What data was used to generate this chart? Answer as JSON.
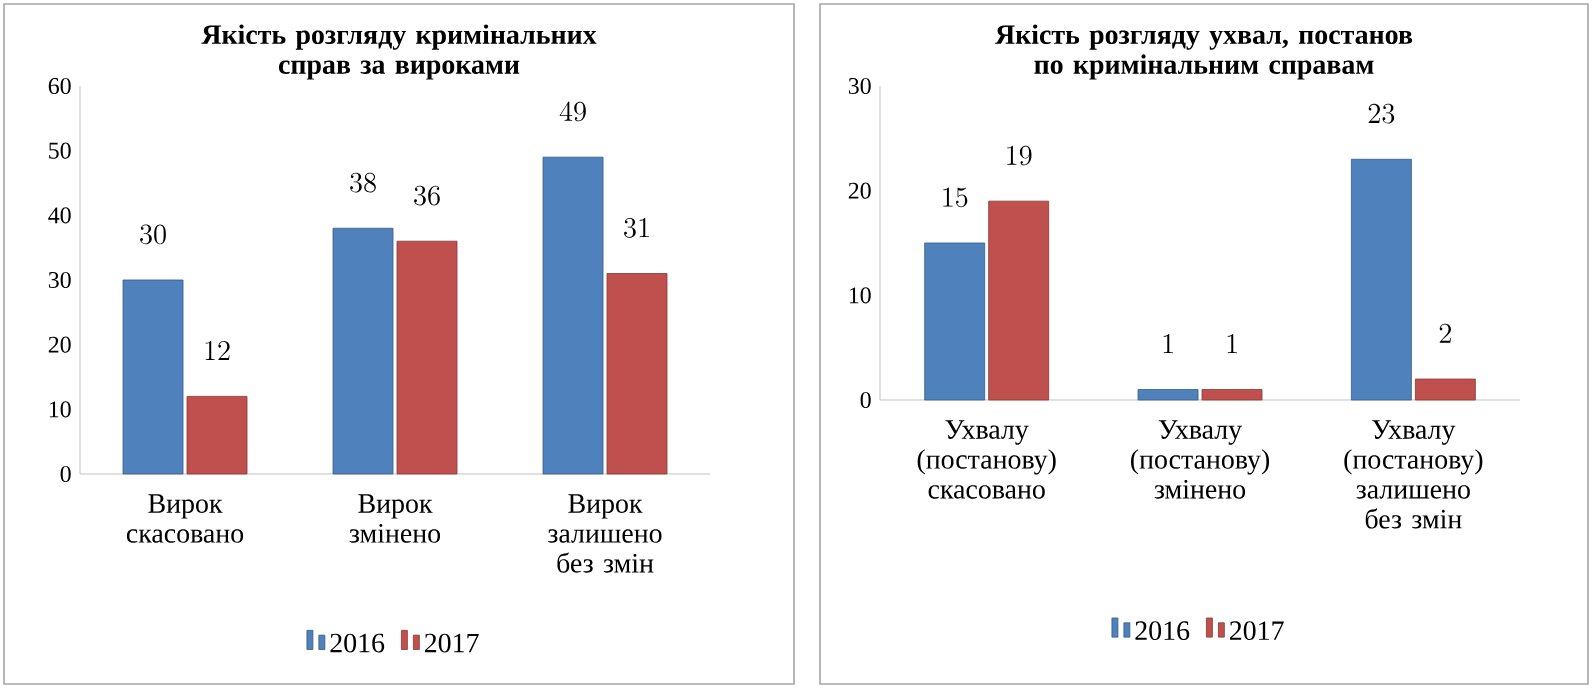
{
  "chart_data": [
    {
      "type": "bar",
      "title": "Якість розгляду кримінальних справ за вироками",
      "categories": [
        "Вирок скасовано",
        "Вирок змінено",
        "Вирок залишено без змін"
      ],
      "series": [
        {
          "name": "2016",
          "color": "#4f81bd",
          "values": [
            30,
            38,
            49
          ]
        },
        {
          "name": "2017",
          "color": "#c0504d",
          "values": [
            12,
            36,
            31
          ]
        }
      ],
      "ylim": [
        0,
        60
      ],
      "yticks": [
        0,
        10,
        20,
        30,
        40,
        50,
        60
      ],
      "data_labels": true,
      "legend": "bottom",
      "grid": false
    },
    {
      "type": "bar",
      "title": "Якість розгляду ухвал, постанов по кримінальним справам",
      "categories": [
        "Ухвалу (постанову) скасовано",
        "Ухвалу (постанову) змінено",
        "Ухвалу (постанову) залишено без змін"
      ],
      "series": [
        {
          "name": "2016",
          "color": "#4f81bd",
          "values": [
            15,
            1,
            23
          ]
        },
        {
          "name": "2017",
          "color": "#c0504d",
          "values": [
            19,
            1,
            2
          ]
        }
      ],
      "ylim": [
        0,
        30
      ],
      "yticks": [
        0,
        10,
        20,
        30
      ],
      "data_labels": true,
      "legend": "bottom",
      "grid": false
    }
  ]
}
